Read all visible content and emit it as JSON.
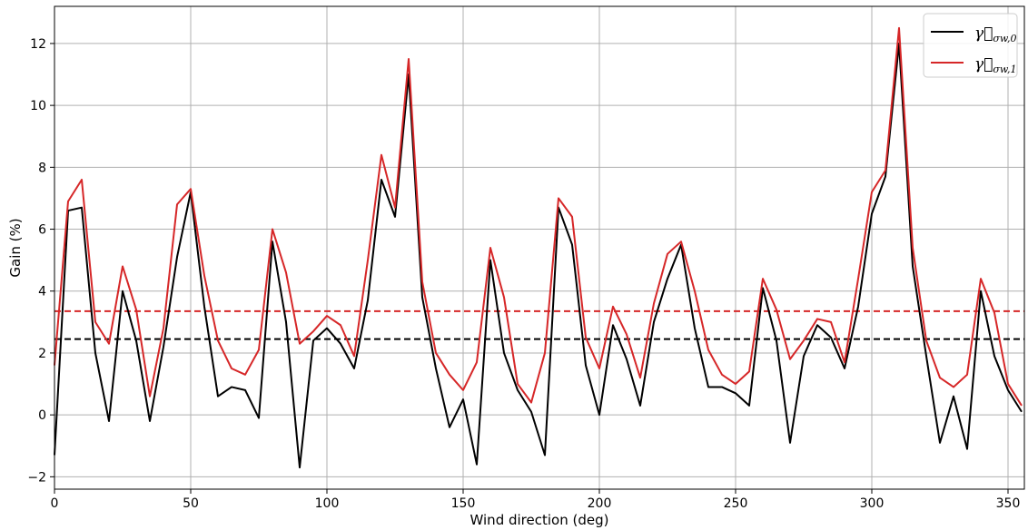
{
  "chart_data": {
    "type": "line",
    "xlabel": "Wind direction (deg)",
    "ylabel": "Gain (%)",
    "xlim": [
      0,
      356
    ],
    "ylim": [
      -2.4,
      13.2
    ],
    "xticks": [
      0,
      50,
      100,
      150,
      200,
      250,
      300,
      350
    ],
    "yticks": [
      -2,
      0,
      2,
      4,
      6,
      8,
      10,
      12
    ],
    "grid": true,
    "legend_position": "top-right",
    "x": [
      0,
      5,
      10,
      15,
      20,
      25,
      30,
      35,
      40,
      45,
      50,
      55,
      60,
      65,
      70,
      75,
      80,
      85,
      90,
      95,
      100,
      105,
      110,
      115,
      120,
      125,
      130,
      135,
      140,
      145,
      150,
      155,
      160,
      165,
      170,
      175,
      180,
      185,
      190,
      195,
      200,
      205,
      210,
      215,
      220,
      225,
      230,
      235,
      240,
      245,
      250,
      255,
      260,
      265,
      270,
      275,
      280,
      285,
      290,
      295,
      300,
      305,
      310,
      315,
      320,
      325,
      330,
      335,
      340,
      345,
      350,
      355
    ],
    "series": [
      {
        "name": "γ⃗σw,0",
        "color": "#000000",
        "values": [
          -1.3,
          6.6,
          6.7,
          2.0,
          -0.2,
          4.0,
          2.4,
          -0.2,
          2.2,
          5.1,
          7.2,
          3.5,
          0.6,
          0.9,
          0.8,
          -0.1,
          5.6,
          3.0,
          -1.7,
          2.4,
          2.8,
          2.3,
          1.5,
          3.7,
          7.6,
          6.4,
          11.0,
          3.8,
          1.5,
          -0.4,
          0.5,
          -1.6,
          5.0,
          2.0,
          0.8,
          0.1,
          -1.3,
          6.7,
          5.5,
          1.6,
          0.0,
          2.9,
          1.8,
          0.3,
          3.0,
          4.4,
          5.5,
          2.8,
          0.9,
          0.9,
          0.7,
          0.3,
          4.1,
          2.4,
          -0.9,
          1.9,
          2.9,
          2.5,
          1.5,
          3.5,
          6.5,
          7.7,
          12.0,
          4.8,
          1.9,
          -0.9,
          0.6,
          -1.1,
          4.0,
          1.9,
          0.8,
          0.1
        ]
      },
      {
        "name": "γ⃗σw,1",
        "color": "#d62728",
        "values": [
          1.6,
          6.9,
          7.6,
          3.0,
          2.3,
          4.8,
          3.4,
          0.6,
          2.8,
          6.8,
          7.3,
          4.5,
          2.4,
          1.5,
          1.3,
          2.1,
          6.0,
          4.6,
          2.3,
          2.7,
          3.2,
          2.9,
          1.9,
          5.0,
          8.4,
          6.7,
          11.5,
          4.3,
          2.0,
          1.3,
          0.8,
          1.7,
          5.4,
          3.8,
          1.0,
          0.4,
          2.0,
          7.0,
          6.4,
          2.5,
          1.5,
          3.5,
          2.6,
          1.2,
          3.6,
          5.2,
          5.6,
          4.0,
          2.1,
          1.3,
          1.0,
          1.4,
          4.4,
          3.4,
          1.8,
          2.4,
          3.1,
          3.0,
          1.7,
          4.4,
          7.2,
          7.9,
          12.5,
          5.4,
          2.4,
          1.2,
          0.9,
          1.3,
          4.4,
          3.3,
          1.0,
          0.3
        ]
      }
    ],
    "reference_lines": [
      {
        "y": 2.45,
        "color": "#000000",
        "style": "dashed"
      },
      {
        "y": 3.35,
        "color": "#d62728",
        "style": "dashed"
      }
    ]
  }
}
